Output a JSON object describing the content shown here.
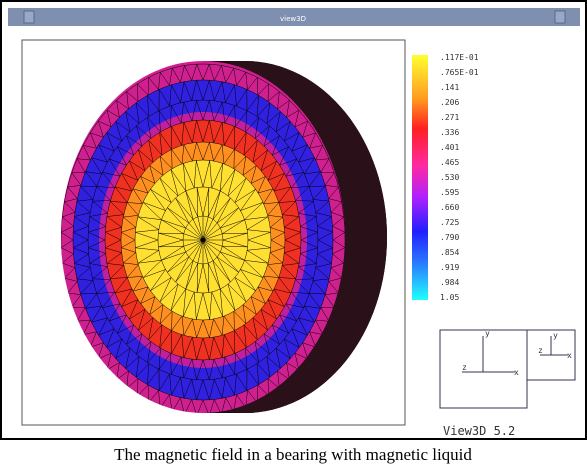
{
  "window": {
    "title": "view3D"
  },
  "legend": {
    "labels": [
      ".117E-01",
      ".765E-01",
      ".141",
      ".206",
      ".271",
      ".336",
      ".401",
      ".465",
      ".530",
      ".595",
      ".660",
      ".725",
      ".790",
      ".854",
      ".919",
      ".984",
      "1.05"
    ]
  },
  "axes": {
    "left": {
      "y": "y",
      "z": "z",
      "x": "x"
    },
    "right": {
      "y": "y",
      "z": "z",
      "x": "x"
    }
  },
  "version": "View3D 5.2",
  "caption": "The magnetic field in a bearing with magnetic liquid"
}
